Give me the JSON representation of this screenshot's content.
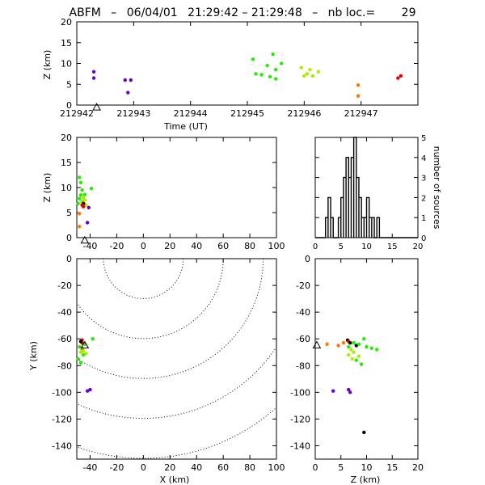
{
  "title": {
    "label": "ABFM",
    "date": "06/04/01",
    "time_range": "21:29:42 – 21:29:48",
    "count_label": "nb loc.=",
    "count": "29"
  },
  "colors": {
    "purple": "#6600cc",
    "green": "#22ee00",
    "lime": "#aaee00",
    "orange": "#ff7700",
    "red": "#ee0000",
    "black": "#000000",
    "frame": "#000000"
  },
  "chart_data": [
    {
      "id": "time_height",
      "type": "scatter",
      "xlabel": "Time (UT)",
      "ylabel": "Z (km)",
      "xlim": [
        212942,
        212948
      ],
      "ylim": [
        0,
        20
      ],
      "xticks": [
        212942,
        212943,
        212944,
        212945,
        212946,
        212947
      ],
      "xtick_labels": [
        "212942",
        "212943",
        "212944",
        "212945",
        "212946",
        "212947"
      ],
      "yticks": [
        0,
        5,
        10,
        15,
        20
      ],
      "station_marker": {
        "x": 212942.35,
        "y": -0.6
      },
      "points": [
        {
          "x": 212942.3,
          "y": 8.0,
          "c": "purple"
        },
        {
          "x": 212942.3,
          "y": 6.5,
          "c": "purple"
        },
        {
          "x": 212942.85,
          "y": 6.0,
          "c": "purple"
        },
        {
          "x": 212942.95,
          "y": 6.0,
          "c": "purple"
        },
        {
          "x": 212942.9,
          "y": 3.0,
          "c": "purple"
        },
        {
          "x": 212945.1,
          "y": 11.0,
          "c": "green"
        },
        {
          "x": 212945.15,
          "y": 7.5,
          "c": "green"
        },
        {
          "x": 212945.25,
          "y": 7.3,
          "c": "green"
        },
        {
          "x": 212945.35,
          "y": 9.5,
          "c": "green"
        },
        {
          "x": 212945.4,
          "y": 6.8,
          "c": "green"
        },
        {
          "x": 212945.45,
          "y": 12.2,
          "c": "green"
        },
        {
          "x": 212945.5,
          "y": 8.5,
          "c": "green"
        },
        {
          "x": 212945.5,
          "y": 6.3,
          "c": "green"
        },
        {
          "x": 212945.6,
          "y": 10.0,
          "c": "green"
        },
        {
          "x": 212945.95,
          "y": 9.0,
          "c": "lime"
        },
        {
          "x": 212946.0,
          "y": 7.0,
          "c": "lime"
        },
        {
          "x": 212946.05,
          "y": 7.5,
          "c": "lime"
        },
        {
          "x": 212946.1,
          "y": 8.5,
          "c": "lime"
        },
        {
          "x": 212946.15,
          "y": 7.0,
          "c": "lime"
        },
        {
          "x": 212946.25,
          "y": 8.0,
          "c": "lime"
        },
        {
          "x": 212946.95,
          "y": 4.8,
          "c": "orange"
        },
        {
          "x": 212946.95,
          "y": 2.2,
          "c": "orange"
        },
        {
          "x": 212947.65,
          "y": 6.5,
          "c": "red"
        },
        {
          "x": 212947.7,
          "y": 7.0,
          "c": "red"
        }
      ]
    },
    {
      "id": "x_height",
      "type": "scatter",
      "xlabel": "",
      "ylabel": "Z (km)",
      "xlim": [
        -50,
        100
      ],
      "ylim": [
        0,
        20
      ],
      "xticks": [
        -40,
        -20,
        0,
        20,
        40,
        60,
        80,
        100
      ],
      "yticks": [
        0,
        5,
        10,
        15,
        20
      ],
      "station_marker": {
        "x": -44,
        "y": -0.6
      },
      "points": [
        {
          "x": -48,
          "y": 12.0,
          "c": "green"
        },
        {
          "x": -47,
          "y": 11.0,
          "c": "green"
        },
        {
          "x": -46,
          "y": 9.5,
          "c": "green"
        },
        {
          "x": -47,
          "y": 8.5,
          "c": "green"
        },
        {
          "x": -48,
          "y": 7.8,
          "c": "green"
        },
        {
          "x": -46,
          "y": 7.2,
          "c": "green"
        },
        {
          "x": -49,
          "y": 6.8,
          "c": "green"
        },
        {
          "x": -44,
          "y": 8.6,
          "c": "green"
        },
        {
          "x": -39,
          "y": 9.8,
          "c": "green"
        },
        {
          "x": -45,
          "y": 8.0,
          "c": "lime"
        },
        {
          "x": -44,
          "y": 7.5,
          "c": "lime"
        },
        {
          "x": -46,
          "y": 7.0,
          "c": "lime"
        },
        {
          "x": -43,
          "y": 6.5,
          "c": "lime"
        },
        {
          "x": -45,
          "y": 6.8,
          "c": "black"
        },
        {
          "x": -46,
          "y": 6.5,
          "c": "red"
        },
        {
          "x": -45,
          "y": 6.2,
          "c": "red"
        },
        {
          "x": -48,
          "y": 4.8,
          "c": "orange"
        },
        {
          "x": -48,
          "y": 2.2,
          "c": "orange"
        },
        {
          "x": -41,
          "y": 6.0,
          "c": "purple"
        },
        {
          "x": -42,
          "y": 3.0,
          "c": "purple"
        }
      ]
    },
    {
      "id": "height_histogram",
      "type": "histogram",
      "ylabel": "number of sources",
      "xlim": [
        0,
        20
      ],
      "ylim": [
        0,
        5
      ],
      "xticks": [
        0,
        5,
        10,
        15,
        20
      ],
      "yticks": [
        0,
        1,
        2,
        3,
        4,
        5
      ],
      "bin_width": 0.5,
      "bins": [
        {
          "x": 2.0,
          "v": 1
        },
        {
          "x": 2.5,
          "v": 2
        },
        {
          "x": 3.0,
          "v": 1
        },
        {
          "x": 4.5,
          "v": 1
        },
        {
          "x": 5.0,
          "v": 2
        },
        {
          "x": 5.5,
          "v": 3
        },
        {
          "x": 6.0,
          "v": 4
        },
        {
          "x": 6.5,
          "v": 3
        },
        {
          "x": 7.0,
          "v": 4
        },
        {
          "x": 7.5,
          "v": 5
        },
        {
          "x": 8.0,
          "v": 3
        },
        {
          "x": 8.5,
          "v": 2
        },
        {
          "x": 9.0,
          "v": 1
        },
        {
          "x": 9.5,
          "v": 1
        },
        {
          "x": 10.0,
          "v": 2
        },
        {
          "x": 10.5,
          "v": 1
        },
        {
          "x": 11.0,
          "v": 1
        },
        {
          "x": 12.0,
          "v": 1
        }
      ]
    },
    {
      "id": "plan_view",
      "type": "scatter",
      "xlabel": "X (km)",
      "ylabel": "Y (km)",
      "xlim": [
        -50,
        100
      ],
      "ylim": [
        -150,
        0
      ],
      "xticks": [
        -40,
        -20,
        0,
        20,
        40,
        60,
        80,
        100
      ],
      "yticks": [
        -140,
        -120,
        -100,
        -80,
        -60,
        -40,
        -20,
        0
      ],
      "range_rings_km": [
        30,
        60,
        90,
        120,
        150
      ],
      "ring_center": [
        0,
        0
      ],
      "station_marker": {
        "x": -44,
        "y": -65
      },
      "points": [
        {
          "x": -46,
          "y": -61,
          "c": "red"
        },
        {
          "x": -46,
          "y": -63,
          "c": "red"
        },
        {
          "x": -47,
          "y": -62,
          "c": "black"
        },
        {
          "x": -44,
          "y": -64,
          "c": "green"
        },
        {
          "x": -38,
          "y": -60,
          "c": "green"
        },
        {
          "x": -48,
          "y": -66,
          "c": "green"
        },
        {
          "x": -46,
          "y": -68,
          "c": "green"
        },
        {
          "x": -49,
          "y": -75,
          "c": "green"
        },
        {
          "x": -47,
          "y": -78,
          "c": "green"
        },
        {
          "x": -45,
          "y": -72,
          "c": "green"
        },
        {
          "x": -45,
          "y": -69,
          "c": "lime"
        },
        {
          "x": -43,
          "y": -71,
          "c": "lime"
        },
        {
          "x": -47,
          "y": -70,
          "c": "lime"
        },
        {
          "x": -46,
          "y": -67,
          "c": "orange"
        },
        {
          "x": -42,
          "y": -99,
          "c": "purple"
        },
        {
          "x": -40,
          "y": -98,
          "c": "purple"
        }
      ]
    },
    {
      "id": "height_y",
      "type": "scatter",
      "xlabel": "Z (km)",
      "ylabel": "",
      "xlim": [
        0,
        20
      ],
      "ylim": [
        -150,
        0
      ],
      "xticks": [
        0,
        5,
        10,
        15,
        20
      ],
      "yticks": [
        -140,
        -120,
        -100,
        -80,
        -60,
        -40,
        -20,
        0
      ],
      "station_marker": {
        "x": 0.3,
        "y": -65
      },
      "points": [
        {
          "x": 2.3,
          "y": -64,
          "c": "orange"
        },
        {
          "x": 4.5,
          "y": -65,
          "c": "orange"
        },
        {
          "x": 5.5,
          "y": -63,
          "c": "orange"
        },
        {
          "x": 6.3,
          "y": -61,
          "c": "black"
        },
        {
          "x": 6.5,
          "y": -62,
          "c": "red"
        },
        {
          "x": 6.8,
          "y": -63,
          "c": "black"
        },
        {
          "x": 7.5,
          "y": -63,
          "c": "green"
        },
        {
          "x": 8.0,
          "y": -65,
          "c": "black"
        },
        {
          "x": 8.5,
          "y": -64,
          "c": "green"
        },
        {
          "x": 9.5,
          "y": -60,
          "c": "green"
        },
        {
          "x": 10.0,
          "y": -66,
          "c": "green"
        },
        {
          "x": 11.0,
          "y": -67,
          "c": "green"
        },
        {
          "x": 12.0,
          "y": -68,
          "c": "green"
        },
        {
          "x": 6.5,
          "y": -66,
          "c": "green"
        },
        {
          "x": 7.0,
          "y": -68,
          "c": "lime"
        },
        {
          "x": 7.5,
          "y": -70,
          "c": "lime"
        },
        {
          "x": 7.2,
          "y": -75,
          "c": "lime"
        },
        {
          "x": 8.5,
          "y": -73,
          "c": "lime"
        },
        {
          "x": 6.5,
          "y": -72,
          "c": "lime"
        },
        {
          "x": 8.0,
          "y": -76,
          "c": "green"
        },
        {
          "x": 9.0,
          "y": -79,
          "c": "green"
        },
        {
          "x": 3.5,
          "y": -99,
          "c": "purple"
        },
        {
          "x": 6.5,
          "y": -98,
          "c": "purple"
        },
        {
          "x": 6.8,
          "y": -100,
          "c": "purple"
        },
        {
          "x": 9.5,
          "y": -130,
          "c": "black"
        }
      ]
    }
  ]
}
